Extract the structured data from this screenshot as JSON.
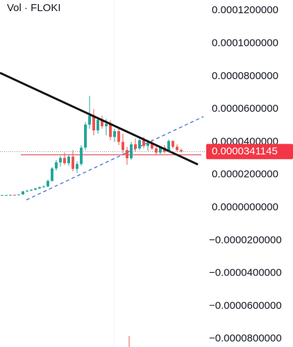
{
  "chart_data": {
    "type": "candlestick",
    "title": "Vol · FLOKI",
    "open": [
      7.6e-06,
      7.6e-06,
      7.6e-06,
      7.7e-06,
      7.6e-06,
      7.9e-06,
      9.8e-06,
      1.03e-05,
      1.08e-05,
      1.16e-05,
      1.24e-05,
      1.28e-05,
      1.62e-05,
      2.38e-05,
      2.75e-05,
      3.02e-05,
      2.7e-05,
      3.1e-05,
      2.35e-05,
      2.65e-05,
      3.65e-05,
      5.05e-05,
      5.6e-05,
      4.7e-05,
      5.35e-05,
      4.95e-05,
      5.1e-05,
      4.3e-05,
      4.65e-05,
      4e-05,
      3.5e-05,
      3e-05,
      3.85e-05,
      3.6e-05,
      4.1e-05,
      3.75e-05,
      3.95e-05,
      3.6e-05,
      3.35e-05,
      3.65e-05,
      3.4e-05,
      4.05e-05,
      3.7e-05,
      3.5e-05
    ],
    "high": [
      7.7e-06,
      7.7e-06,
      7.8e-06,
      7.8e-06,
      8e-06,
      1.02e-05,
      1.06e-05,
      1.12e-05,
      1.2e-05,
      1.28e-05,
      1.35e-05,
      1.7e-05,
      2.45e-05,
      2.9e-05,
      3.15e-05,
      3.35e-05,
      3.2e-05,
      3.5e-05,
      2.8e-05,
      3.8e-05,
      5.2e-05,
      6.8e-05,
      6e-05,
      5.5e-05,
      5.6e-05,
      5.4e-05,
      5.3e-05,
      4.8e-05,
      4.8e-05,
      4.5e-05,
      3.7e-05,
      4e-05,
      4.2e-05,
      4.25e-05,
      4.3e-05,
      4.1e-05,
      4.15e-05,
      3.8e-05,
      3.75e-05,
      3.8e-05,
      4.15e-05,
      4.1e-05,
      3.85e-05,
      3.6e-05
    ],
    "low": [
      7.5e-06,
      7.5e-06,
      7.5e-06,
      7.5e-06,
      7.5e-06,
      7.8e-06,
      9.4e-06,
      1e-05,
      1.05e-05,
      1.12e-05,
      1.2e-05,
      1.25e-05,
      1.58e-05,
      2.25e-05,
      2.5e-05,
      2.6e-05,
      2.55e-05,
      2.2e-05,
      2.1e-05,
      2.55e-05,
      3.5e-05,
      4.8e-05,
      4.4e-05,
      4.5e-05,
      4.8e-05,
      4.4e-05,
      4.1e-05,
      4e-05,
      3.8e-05,
      3.3e-05,
      2.6e-05,
      2.9e-05,
      3.4e-05,
      3.5e-05,
      3.6e-05,
      3.45e-05,
      3.5e-05,
      3.2e-05,
      3.25e-05,
      3.3e-05,
      3.35e-05,
      3.6e-05,
      3.4e-05,
      3.35e-05
    ],
    "close": [
      7.6e-06,
      7.6e-06,
      7.7e-06,
      7.6e-06,
      7.9e-06,
      9.8e-06,
      1.03e-05,
      1.08e-05,
      1.16e-05,
      1.24e-05,
      1.28e-05,
      1.62e-05,
      2.38e-05,
      2.75e-05,
      3.02e-05,
      2.7e-05,
      3.1e-05,
      2.35e-05,
      2.65e-05,
      3.65e-05,
      5.05e-05,
      5.6e-05,
      4.7e-05,
      5.35e-05,
      4.95e-05,
      5.1e-05,
      4.3e-05,
      4.65e-05,
      4e-05,
      3.5e-05,
      3e-05,
      3.85e-05,
      3.6e-05,
      4.1e-05,
      3.75e-05,
      3.95e-05,
      3.6e-05,
      3.35e-05,
      3.65e-05,
      3.4e-05,
      4.05e-05,
      3.7e-05,
      3.5e-05,
      3.41145e-05
    ],
    "up_color": "#26a69a",
    "down_color": "#ef5350",
    "last_price": 3.41145e-05,
    "last_price_color": "#f23645",
    "ylim": [
      -8.499e-05,
      0.00012643
    ],
    "yticks": [
      {
        "value": 0.00012,
        "label": "0.0001200000"
      },
      {
        "value": 0.0001,
        "label": "0.0001000000"
      },
      {
        "value": 8e-05,
        "label": "0.0000800000"
      },
      {
        "value": 6e-05,
        "label": "0.0000600000"
      },
      {
        "value": 4e-05,
        "label": "0.0000400000"
      },
      {
        "value": 2e-05,
        "label": "0.0000200000"
      },
      {
        "value": 0,
        "label": "0.0000000000"
      },
      {
        "value": -2e-05,
        "label": "−0.0000200000"
      },
      {
        "value": -4e-05,
        "label": "−0.0000400000"
      },
      {
        "value": -6e-05,
        "label": "−0.0000600000"
      },
      {
        "value": -8e-05,
        "label": "−0.0000800000"
      }
    ]
  }
}
